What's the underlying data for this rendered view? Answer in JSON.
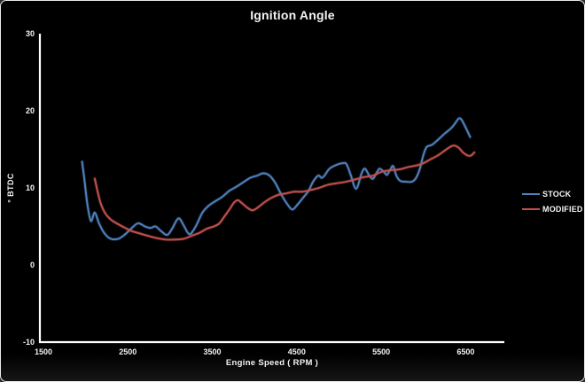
{
  "chart_data": {
    "type": "line",
    "title": "Ignition Angle",
    "xlabel": "Engine Speed ( RPM )",
    "ylabel": "° BTDC",
    "xlim": [
      1500,
      7000
    ],
    "ylim": [
      -10,
      30
    ],
    "x_ticks": [
      1500,
      2500,
      3500,
      4500,
      5500,
      6500
    ],
    "y_ticks": [
      30,
      20,
      10,
      0,
      -10
    ],
    "grid": false,
    "legend_position": "right",
    "background_color": "#000000",
    "text_color": "#f2f2f2",
    "axis_color": "#ffffff",
    "series": [
      {
        "name": "STOCK",
        "color": "#4f81bd",
        "points": [
          [
            2000,
            13.4
          ],
          [
            2030,
            10.8
          ],
          [
            2065,
            7.7
          ],
          [
            2105,
            5.7
          ],
          [
            2150,
            6.8
          ],
          [
            2200,
            5.4
          ],
          [
            2265,
            4.1
          ],
          [
            2340,
            3.4
          ],
          [
            2430,
            3.4
          ],
          [
            2500,
            3.9
          ],
          [
            2570,
            4.6
          ],
          [
            2660,
            5.4
          ],
          [
            2745,
            5.0
          ],
          [
            2810,
            4.8
          ],
          [
            2870,
            5.0
          ],
          [
            2935,
            4.4
          ],
          [
            3005,
            3.9
          ],
          [
            3060,
            4.6
          ],
          [
            3120,
            5.8
          ],
          [
            3155,
            6.0
          ],
          [
            3205,
            5.1
          ],
          [
            3270,
            4.0
          ],
          [
            3340,
            4.9
          ],
          [
            3425,
            6.8
          ],
          [
            3500,
            7.7
          ],
          [
            3580,
            8.3
          ],
          [
            3655,
            8.8
          ],
          [
            3740,
            9.6
          ],
          [
            3820,
            10.1
          ],
          [
            3905,
            10.7
          ],
          [
            3990,
            11.3
          ],
          [
            4075,
            11.6
          ],
          [
            4145,
            11.9
          ],
          [
            4220,
            11.6
          ],
          [
            4290,
            10.6
          ],
          [
            4365,
            9.0
          ],
          [
            4430,
            7.9
          ],
          [
            4490,
            7.2
          ],
          [
            4555,
            7.9
          ],
          [
            4615,
            8.7
          ],
          [
            4680,
            9.6
          ],
          [
            4730,
            10.7
          ],
          [
            4775,
            11.4
          ],
          [
            4805,
            11.6
          ],
          [
            4835,
            11.3
          ],
          [
            4870,
            11.6
          ],
          [
            4930,
            12.5
          ],
          [
            5015,
            13.0
          ],
          [
            5080,
            13.2
          ],
          [
            5130,
            13.1
          ],
          [
            5180,
            11.7
          ],
          [
            5245,
            9.9
          ],
          [
            5310,
            11.9
          ],
          [
            5350,
            12.5
          ],
          [
            5400,
            11.6
          ],
          [
            5445,
            11.2
          ],
          [
            5495,
            12.1
          ],
          [
            5525,
            12.5
          ],
          [
            5580,
            12.0
          ],
          [
            5610,
            11.7
          ],
          [
            5655,
            12.5
          ],
          [
            5685,
            12.8
          ],
          [
            5725,
            11.5
          ],
          [
            5770,
            10.9
          ],
          [
            5830,
            10.8
          ],
          [
            5905,
            10.8
          ],
          [
            5955,
            11.3
          ],
          [
            6000,
            12.5
          ],
          [
            6040,
            14.2
          ],
          [
            6080,
            15.3
          ],
          [
            6145,
            15.6
          ],
          [
            6220,
            16.3
          ],
          [
            6300,
            17.1
          ],
          [
            6375,
            17.8
          ],
          [
            6425,
            18.5
          ],
          [
            6460,
            19.0
          ],
          [
            6490,
            18.9
          ],
          [
            6530,
            18.1
          ],
          [
            6565,
            17.3
          ],
          [
            6595,
            16.6
          ]
        ]
      },
      {
        "name": "MODIFIED",
        "color": "#c0504d",
        "points": [
          [
            2150,
            11.2
          ],
          [
            2180,
            9.7
          ],
          [
            2220,
            8.0
          ],
          [
            2275,
            6.7
          ],
          [
            2340,
            5.9
          ],
          [
            2410,
            5.4
          ],
          [
            2495,
            4.9
          ],
          [
            2590,
            4.4
          ],
          [
            2680,
            4.1
          ],
          [
            2775,
            3.8
          ],
          [
            2880,
            3.5
          ],
          [
            2995,
            3.3
          ],
          [
            3100,
            3.3
          ],
          [
            3205,
            3.4
          ],
          [
            3300,
            3.8
          ],
          [
            3395,
            4.2
          ],
          [
            3475,
            4.7
          ],
          [
            3560,
            5.0
          ],
          [
            3625,
            5.4
          ],
          [
            3685,
            6.3
          ],
          [
            3750,
            7.3
          ],
          [
            3800,
            8.1
          ],
          [
            3845,
            8.4
          ],
          [
            3895,
            8.0
          ],
          [
            3960,
            7.4
          ],
          [
            4020,
            7.1
          ],
          [
            4085,
            7.5
          ],
          [
            4155,
            8.1
          ],
          [
            4240,
            8.7
          ],
          [
            4325,
            9.1
          ],
          [
            4420,
            9.3
          ],
          [
            4510,
            9.5
          ],
          [
            4605,
            9.5
          ],
          [
            4700,
            9.7
          ],
          [
            4805,
            10.0
          ],
          [
            4910,
            10.4
          ],
          [
            5015,
            10.6
          ],
          [
            5130,
            10.8
          ],
          [
            5235,
            11.1
          ],
          [
            5340,
            11.4
          ],
          [
            5445,
            11.6
          ],
          [
            5550,
            12.1
          ],
          [
            5655,
            12.3
          ],
          [
            5760,
            12.4
          ],
          [
            5860,
            12.7
          ],
          [
            5955,
            12.9
          ],
          [
            6040,
            13.2
          ],
          [
            6125,
            13.7
          ],
          [
            6210,
            14.2
          ],
          [
            6290,
            14.8
          ],
          [
            6355,
            15.3
          ],
          [
            6405,
            15.5
          ],
          [
            6460,
            15.2
          ],
          [
            6510,
            14.6
          ],
          [
            6565,
            14.2
          ],
          [
            6605,
            14.2
          ],
          [
            6645,
            14.6
          ]
        ]
      }
    ]
  }
}
